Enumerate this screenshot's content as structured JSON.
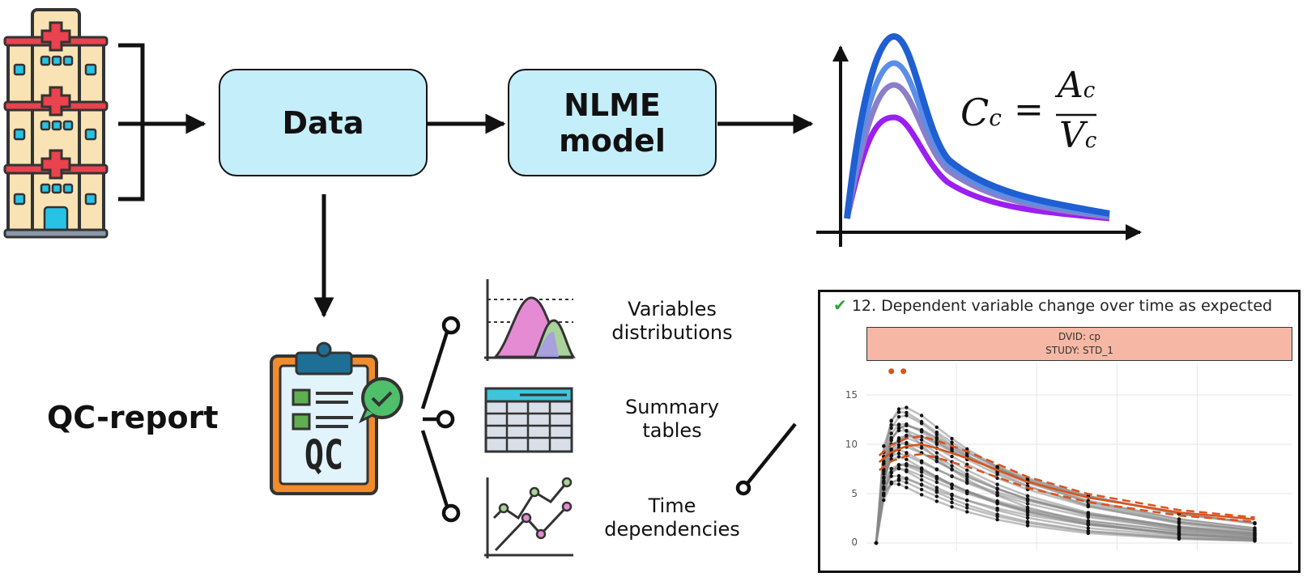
{
  "flow": {
    "data_label": "Data",
    "nlme_line1": "NLME",
    "nlme_line2": "model"
  },
  "formula": {
    "lhs": "C",
    "lhs_sub": "c",
    "eq": "=",
    "num": "A",
    "num_sub": "c",
    "den": "V",
    "den_sub": "c"
  },
  "qc": {
    "title": "QC-report",
    "clipboard_text": "QC",
    "items": [
      {
        "line1": "Variables",
        "line2": "distributions"
      },
      {
        "line1": "Summary",
        "line2": "tables"
      },
      {
        "line1": "Time",
        "line2": "dependencies"
      }
    ]
  },
  "panel": {
    "check": "✔",
    "title": "12. Dependent variable change over time as expected",
    "strip_line1": "DVID: cp",
    "strip_line2": "STUDY: STD_1",
    "y_ticks": [
      "15",
      "10",
      "5",
      "0"
    ]
  },
  "colors": {
    "box_fill": "#c5eefb",
    "curve_blue": "#1f5fd1",
    "curve_light_blue": "#5b8ee8",
    "curve_lavender": "#8a7fc8",
    "curve_violet": "#9b1ff0",
    "strip_fill": "#f6b8a4",
    "median_line": "#d9531e"
  }
}
